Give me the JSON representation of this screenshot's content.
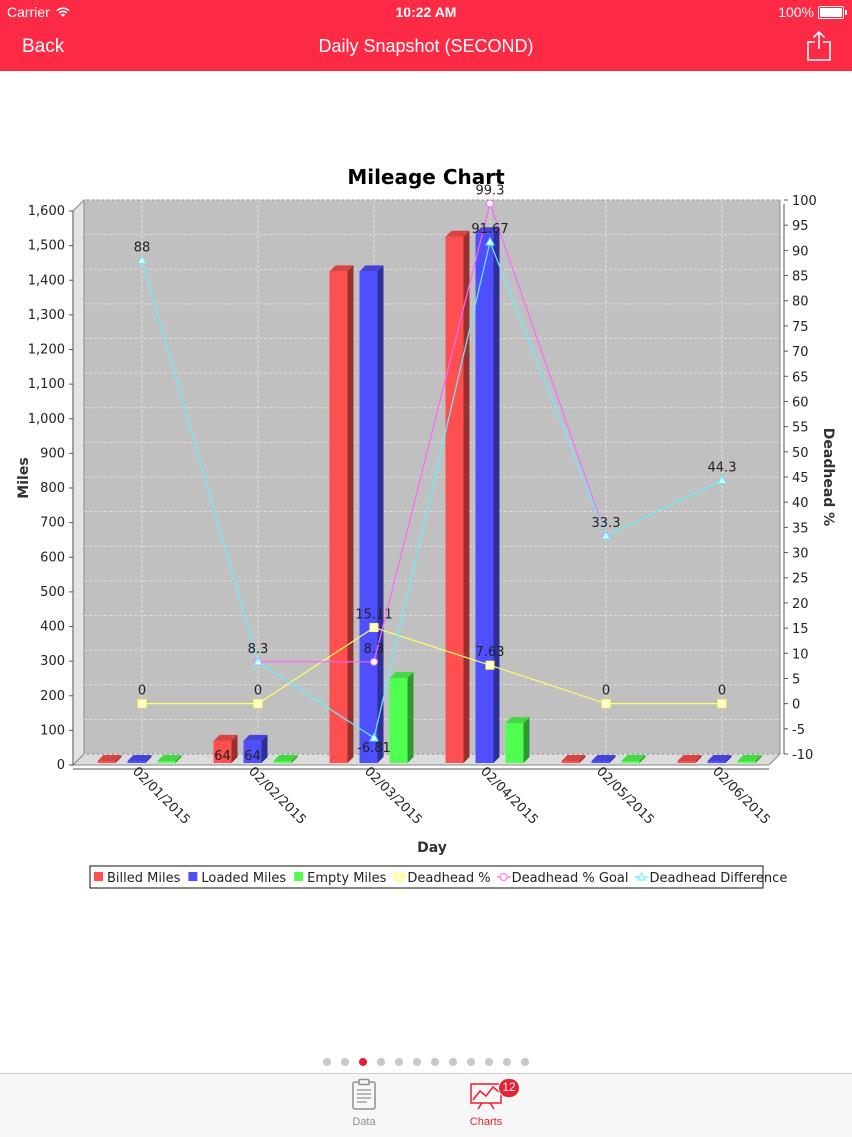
{
  "status_bar": {
    "carrier": "Carrier",
    "time": "10:22 AM",
    "battery": "100%"
  },
  "nav": {
    "back_label": "Back",
    "title": "Daily Snapshot (SECOND)"
  },
  "chart_data": {
    "type": "bar",
    "title": "Mileage Chart",
    "xlabel": "Day",
    "ylabel": "Miles",
    "y2label": "Deadhead %",
    "categories": [
      "02/01/2015",
      "02/02/2015",
      "02/03/2015",
      "02/04/2015",
      "02/05/2015",
      "02/06/2015"
    ],
    "ylim": [
      0,
      1600
    ],
    "y_ticks": [
      "0",
      "100",
      "200",
      "300",
      "400",
      "500",
      "600",
      "700",
      "800",
      "900",
      "1,000",
      "1,100",
      "1,200",
      "1,300",
      "1,400",
      "1,500",
      "1,600"
    ],
    "y2lim": [
      -10,
      100
    ],
    "y2_ticks": [
      "-10",
      "-5",
      "0",
      "5",
      "10",
      "15",
      "20",
      "25",
      "30",
      "35",
      "40",
      "45",
      "50",
      "55",
      "60",
      "65",
      "70",
      "75",
      "80",
      "85",
      "90",
      "95",
      "100"
    ],
    "grid": true,
    "series": [
      {
        "name": "Billed Miles",
        "type": "bar",
        "color": "#ff4f4f",
        "values": [
          0,
          64,
          1420,
          1520,
          0,
          0
        ],
        "labels": [
          "",
          "64",
          "",
          "",
          "",
          ""
        ]
      },
      {
        "name": "Loaded Miles",
        "type": "bar",
        "color": "#4f4fff",
        "values": [
          0,
          64,
          1420,
          1530,
          0,
          0
        ],
        "labels": [
          "",
          "64",
          "",
          "",
          "",
          ""
        ]
      },
      {
        "name": "Empty Miles",
        "type": "bar",
        "color": "#4fff4f",
        "values": [
          0,
          0,
          245,
          115,
          0,
          0
        ],
        "labels": [
          "",
          "",
          "",
          "",
          "",
          ""
        ]
      },
      {
        "name": "Deadhead %",
        "type": "line",
        "axis": "right",
        "color": "#ffff66",
        "marker": "square",
        "values": [
          0,
          0,
          15.11,
          7.63,
          0,
          0
        ],
        "labels": [
          "0",
          "0",
          "15.11",
          "7.63",
          "0",
          "0"
        ]
      },
      {
        "name": "Deadhead % Goal",
        "type": "line",
        "axis": "right",
        "color": "#ff66ff",
        "marker": "circle",
        "values": [
          null,
          8.3,
          8.3,
          99.3,
          33.3,
          null
        ],
        "labels": [
          "",
          "",
          "8.3",
          "99.3",
          "",
          ""
        ]
      },
      {
        "name": "Deadhead Difference",
        "type": "line",
        "axis": "right",
        "color": "#66eeff",
        "marker": "triangle",
        "values": [
          88,
          8.3,
          -6.81,
          91.67,
          33.3,
          44.3
        ],
        "labels": [
          "88",
          "8.3",
          "-6.81",
          "91.67",
          "33.3",
          "44.3"
        ]
      }
    ],
    "legend_position": "bottom"
  },
  "pager": {
    "count": 12,
    "active": 2
  },
  "tabbar": {
    "tabs": [
      {
        "label": "Data",
        "icon": "clipboard-icon"
      },
      {
        "label": "Charts",
        "icon": "chart-icon",
        "badge": "12"
      }
    ]
  }
}
